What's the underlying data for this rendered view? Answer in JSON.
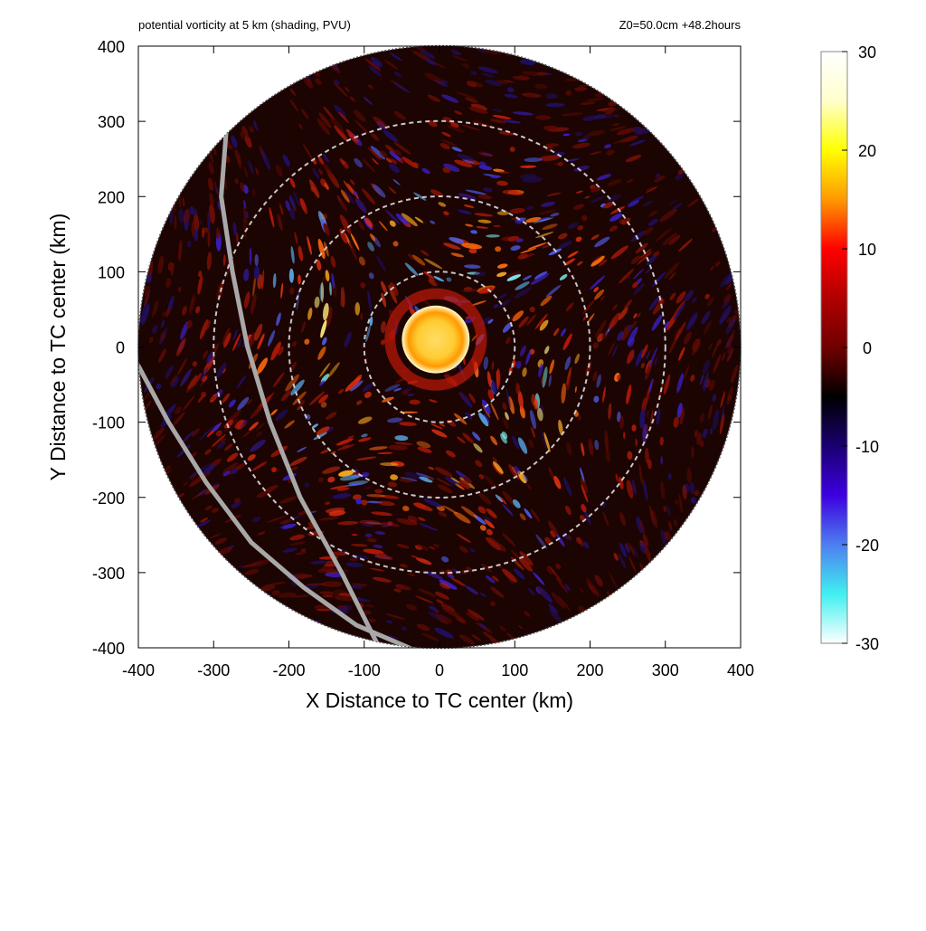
{
  "header": {
    "title_left": "potential vorticity at 5 km (shading, PVU)",
    "title_right": "Z0=50.0cm  +48.2hours"
  },
  "chart_data": {
    "type": "heatmap",
    "title": "potential vorticity at 5 km (shading, PVU)",
    "subtitle": "Z0=50.0cm  +48.2hours",
    "xlabel": "X Distance to TC center (km)",
    "ylabel": "Y Distance to TC center (km)",
    "xlim": [
      -400,
      400
    ],
    "ylim": [
      -400,
      400
    ],
    "x_ticks": [
      -400,
      -300,
      -200,
      -100,
      0,
      100,
      200,
      300,
      400
    ],
    "y_ticks": [
      -400,
      -300,
      -200,
      -100,
      0,
      100,
      200,
      300,
      400
    ],
    "domain_radius_km": 400,
    "range_rings_km": [
      100,
      200,
      300
    ],
    "colorbar": {
      "min": -30,
      "max": 30,
      "ticks": [
        30,
        20,
        10,
        0,
        -10,
        -20,
        -30
      ],
      "colors": [
        "#ffffff",
        "#ffffcc",
        "#ffff00",
        "#ff9900",
        "#ff0000",
        "#b00000",
        "#700000",
        "#000000",
        "#1a0070",
        "#3d00e0",
        "#4d7ef0",
        "#40f0f0",
        "#ffffff"
      ]
    },
    "eye_core": {
      "x": -5,
      "y": 10,
      "radius_km": 45,
      "value": 30
    },
    "tracks": [
      {
        "points": [
          [
            -283,
            290
          ],
          [
            -290,
            200
          ],
          [
            -275,
            100
          ],
          [
            -255,
            0
          ],
          [
            -225,
            -100
          ],
          [
            -185,
            -200
          ],
          [
            -130,
            -300
          ],
          [
            -80,
            -400
          ]
        ]
      },
      {
        "points": [
          [
            -400,
            -25
          ],
          [
            -360,
            -100
          ],
          [
            -310,
            -180
          ],
          [
            -250,
            -260
          ],
          [
            -180,
            -320
          ],
          [
            -110,
            -370
          ],
          [
            -40,
            -400
          ]
        ]
      }
    ],
    "grid": false
  }
}
